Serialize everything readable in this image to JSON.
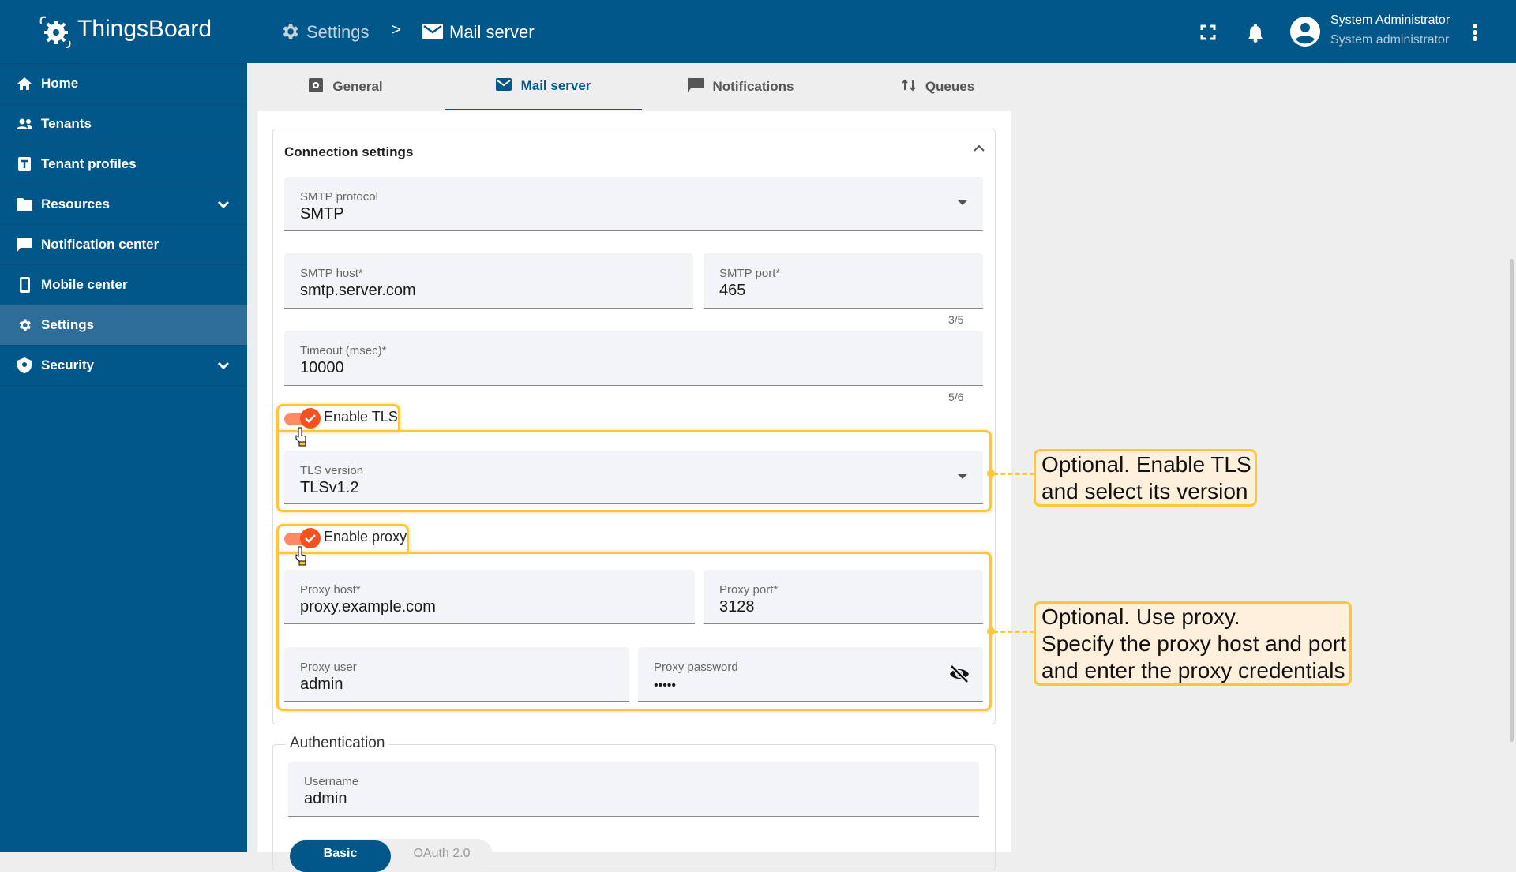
{
  "header": {
    "app_name": "ThingsBoard",
    "breadcrumb": [
      {
        "label": "Settings",
        "icon": "gear-icon"
      },
      {
        "separator": ">"
      },
      {
        "label": "Mail server",
        "icon": "mail-icon"
      }
    ],
    "user_name": "System Administrator",
    "user_role": "System administrator"
  },
  "sidebar": {
    "items": [
      {
        "label": "Home",
        "icon": "home-icon"
      },
      {
        "label": "Tenants",
        "icon": "people-icon"
      },
      {
        "label": "Tenant profiles",
        "icon": "tenant-profile-icon"
      },
      {
        "label": "Resources",
        "icon": "folder-icon",
        "expandable": true
      },
      {
        "label": "Notification center",
        "icon": "notification-icon"
      },
      {
        "label": "Mobile center",
        "icon": "phone-icon"
      },
      {
        "label": "Settings",
        "icon": "gear-icon",
        "selected": true
      },
      {
        "label": "Security",
        "icon": "shield-icon",
        "expandable": true
      }
    ]
  },
  "tabs": [
    {
      "label": "General"
    },
    {
      "label": "Mail server",
      "selected": true
    },
    {
      "label": "Notifications"
    },
    {
      "label": "Queues"
    }
  ],
  "connection": {
    "title": "Connection settings",
    "smtp_protocol": {
      "label": "SMTP protocol",
      "value": "SMTP"
    },
    "smtp_host": {
      "label": "SMTP host*",
      "value": "smtp.server.com"
    },
    "smtp_port": {
      "label": "SMTP port*",
      "value": "465",
      "hint": "3/5"
    },
    "timeout": {
      "label": "Timeout (msec)*",
      "value": "10000",
      "hint": "5/6"
    },
    "enable_tls": {
      "label": "Enable TLS",
      "checked": true
    },
    "tls_version": {
      "label": "TLS version",
      "value": "TLSv1.2"
    },
    "enable_proxy": {
      "label": "Enable proxy",
      "checked": true
    },
    "proxy_host": {
      "label": "Proxy host*",
      "value": "proxy.example.com"
    },
    "proxy_port": {
      "label": "Proxy port*",
      "value": "3128"
    },
    "proxy_user": {
      "label": "Proxy user",
      "value": "admin"
    },
    "proxy_password": {
      "label": "Proxy password",
      "value": "•••••"
    }
  },
  "authentication": {
    "title": "Authentication",
    "username": {
      "label": "Username",
      "value": "admin"
    },
    "methods": [
      {
        "label": "Basic",
        "selected": true
      },
      {
        "label": "OAuth 2.0"
      }
    ]
  },
  "annotations": {
    "tls": "Optional. Enable TLS\nand select its version",
    "proxy": "Optional. Use proxy.\nSpecify the proxy host and port\nand enter the proxy credentials"
  },
  "colors": {
    "primary": "#02578a",
    "highlight": "#fdc539",
    "toggle": "#f4511e"
  }
}
